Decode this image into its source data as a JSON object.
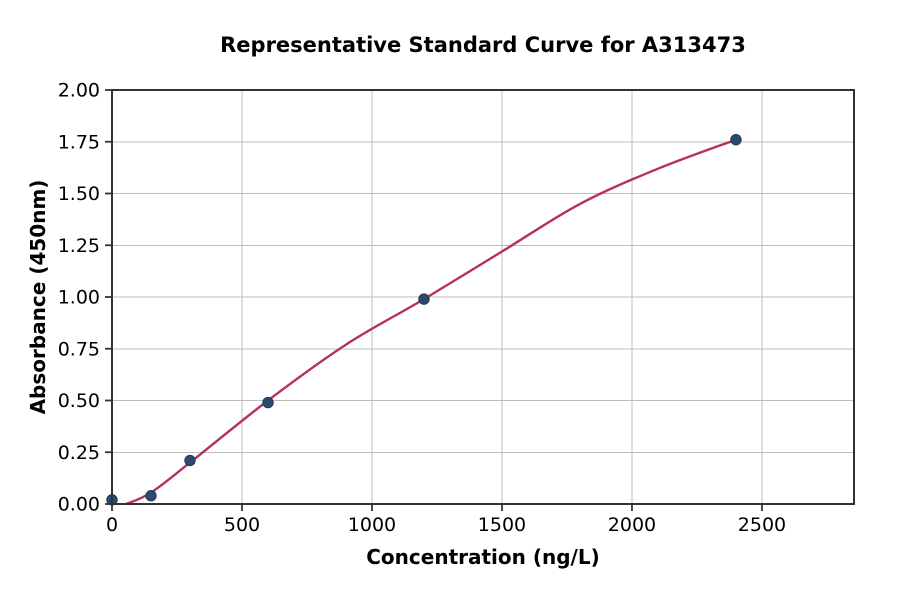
{
  "chart": {
    "title": "Representative Standard Curve for A313473",
    "xlabel": "Concentration (ng/L)",
    "ylabel": "Absorbance (450nm)"
  },
  "chart_data": {
    "type": "scatter",
    "title": "Representative Standard Curve for A313473",
    "xlabel": "Concentration (ng/L)",
    "ylabel": "Absorbance (450nm)",
    "xlim": [
      0,
      2854
    ],
    "ylim": [
      0,
      2.0
    ],
    "grid": true,
    "legend": "none",
    "x_ticks": [
      {
        "value": 0,
        "label": "0"
      },
      {
        "value": 500,
        "label": "500"
      },
      {
        "value": 1000,
        "label": "1000"
      },
      {
        "value": 1500,
        "label": "1500"
      },
      {
        "value": 2000,
        "label": "2000"
      },
      {
        "value": 2500,
        "label": "2500"
      }
    ],
    "y_ticks": [
      {
        "value": 0.0,
        "label": "0.00"
      },
      {
        "value": 0.25,
        "label": "0.25"
      },
      {
        "value": 0.5,
        "label": "0.50"
      },
      {
        "value": 0.75,
        "label": "0.75"
      },
      {
        "value": 1.0,
        "label": "1.00"
      },
      {
        "value": 1.25,
        "label": "1.25"
      },
      {
        "value": 1.5,
        "label": "1.50"
      },
      {
        "value": 1.75,
        "label": "1.75"
      },
      {
        "value": 2.0,
        "label": "2.00"
      }
    ],
    "points": [
      {
        "x": 0,
        "y": 0.02
      },
      {
        "x": 150,
        "y": 0.04
      },
      {
        "x": 300,
        "y": 0.21
      },
      {
        "x": 600,
        "y": 0.49
      },
      {
        "x": 1200,
        "y": 0.99
      },
      {
        "x": 2400,
        "y": 1.76
      }
    ],
    "fit_curve": [
      {
        "x": 55,
        "y": 0.0
      },
      {
        "x": 150,
        "y": 0.055
      },
      {
        "x": 300,
        "y": 0.2
      },
      {
        "x": 600,
        "y": 0.5
      },
      {
        "x": 900,
        "y": 0.77
      },
      {
        "x": 1200,
        "y": 0.99
      },
      {
        "x": 1500,
        "y": 1.22
      },
      {
        "x": 1800,
        "y": 1.45
      },
      {
        "x": 2100,
        "y": 1.62
      },
      {
        "x": 2400,
        "y": 1.76
      }
    ],
    "colors": {
      "curve": "#b5315f",
      "marker": "#2c4a6e",
      "marker_edge": "#1e3a5c",
      "grid": "#bdbdbd",
      "spine": "#333333",
      "text": "#000000",
      "background": "#ffffff"
    }
  }
}
